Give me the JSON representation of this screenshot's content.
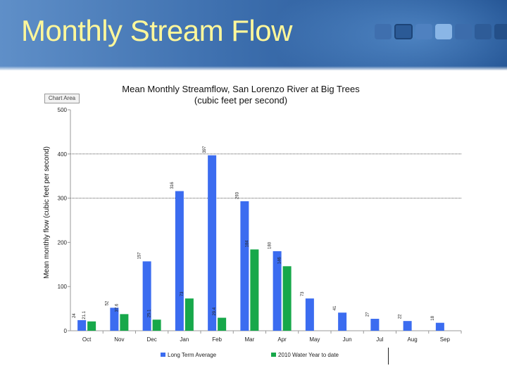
{
  "slide": {
    "title": "Monthly Stream Flow",
    "chart_area_tag": "Chart Area"
  },
  "colors": {
    "series1": "#3b6cf0",
    "series2": "#17a84a"
  },
  "chart_data": {
    "type": "bar",
    "title": "Mean Monthly Streamflow, San Lorenzo River at Big Trees",
    "subtitle": "(cubic feet per second)",
    "xlabel": "",
    "ylabel": "Mean monthly flow (cubic feet per second)",
    "ylim": [
      0,
      500
    ],
    "yticks": [
      "0",
      "100",
      "200",
      "300",
      "400",
      "500"
    ],
    "gridlines": [
      300,
      400
    ],
    "categories": [
      "Oct",
      "Nov",
      "Dec",
      "Jan",
      "Feb",
      "Mar",
      "Apr",
      "May",
      "Jun",
      "Jul",
      "Aug",
      "Sep"
    ],
    "series": [
      {
        "name": "Long Term Average",
        "color": "#3b6cf0",
        "values": [
          24,
          52,
          157,
          316,
          397,
          293,
          180,
          73,
          41,
          27,
          22,
          18
        ],
        "labels": [
          "24",
          "52",
          "157",
          "316",
          "397",
          "293",
          "180",
          "73",
          "41",
          "27",
          "22",
          "18"
        ]
      },
      {
        "name": "2010 Water Year to date",
        "color": "#17a84a",
        "values": [
          21.1,
          37.6,
          25.1,
          73,
          29.4,
          184,
          146,
          null,
          null,
          null,
          null,
          null
        ],
        "labels": [
          "21.1",
          "37.6",
          "25.1",
          "73",
          "29.4",
          "184",
          "146",
          "",
          "",
          "",
          "",
          ""
        ]
      }
    ]
  }
}
